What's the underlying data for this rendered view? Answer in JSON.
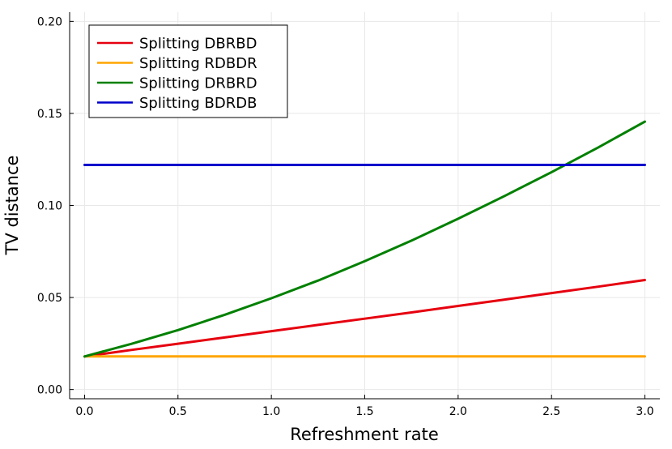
{
  "chart_data": {
    "type": "line",
    "title": "",
    "xlabel": "Refreshment rate",
    "ylabel": "TV distance",
    "xlim": [
      -0.08,
      3.08
    ],
    "ylim": [
      -0.005,
      0.205
    ],
    "grid": true,
    "legend_position": "top-left",
    "xticks": [
      {
        "value": 0.0,
        "label": "0.0"
      },
      {
        "value": 0.5,
        "label": "0.5"
      },
      {
        "value": 1.0,
        "label": "1.0"
      },
      {
        "value": 1.5,
        "label": "1.5"
      },
      {
        "value": 2.0,
        "label": "2.0"
      },
      {
        "value": 2.5,
        "label": "2.5"
      },
      {
        "value": 3.0,
        "label": "3.0"
      }
    ],
    "yticks": [
      {
        "value": 0.0,
        "label": "0.00"
      },
      {
        "value": 0.05,
        "label": "0.05"
      },
      {
        "value": 0.1,
        "label": "0.10"
      },
      {
        "value": 0.15,
        "label": "0.15"
      },
      {
        "value": 0.2,
        "label": "0.20"
      }
    ],
    "x": [
      0.0,
      0.25,
      0.5,
      0.75,
      1.0,
      1.25,
      1.5,
      1.75,
      2.0,
      2.25,
      2.5,
      2.75,
      3.0
    ],
    "series": [
      {
        "name": "Splitting DBRBD",
        "color": "#e6000f",
        "values": [
          0.018,
          0.0215,
          0.0249,
          0.0283,
          0.0317,
          0.0351,
          0.0385,
          0.0419,
          0.0454,
          0.0489,
          0.0524,
          0.0559,
          0.0595
        ]
      },
      {
        "name": "Splitting RDBDR",
        "color": "#ffa500",
        "values": [
          0.018,
          0.018,
          0.018,
          0.018,
          0.018,
          0.018,
          0.018,
          0.018,
          0.018,
          0.018,
          0.018,
          0.018,
          0.018
        ]
      },
      {
        "name": "Splitting DRBRD",
        "color": "#008000",
        "values": [
          0.018,
          0.0248,
          0.0323,
          0.0406,
          0.0496,
          0.0592,
          0.0697,
          0.0809,
          0.0928,
          0.1052,
          0.1181,
          0.1315,
          0.1455
        ]
      },
      {
        "name": "Splitting BDRDB",
        "color": "#0000cc",
        "values": [
          0.122,
          0.122,
          0.122,
          0.122,
          0.122,
          0.122,
          0.122,
          0.122,
          0.122,
          0.122,
          0.122,
          0.122,
          0.122
        ]
      }
    ]
  }
}
